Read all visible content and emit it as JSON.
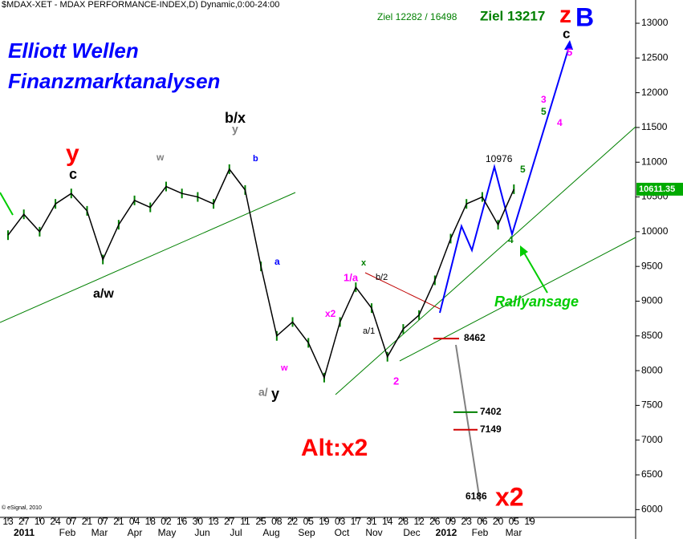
{
  "chart_data": {
    "type": "line",
    "title": "$MDAX-XET - MDAX PERFORMANCE-INDEX,D) Dynamic,0:00-24:00",
    "copyright": "© eSignal, 2010",
    "categories": [
      "13",
      "27",
      "10",
      "24",
      "07",
      "21",
      "07",
      "21",
      "04",
      "18",
      "02",
      "16",
      "30",
      "13",
      "27",
      "11",
      "25",
      "08",
      "22",
      "05",
      "19",
      "03",
      "17",
      "31",
      "14",
      "28",
      "12",
      "26",
      "09",
      "23",
      "06",
      "20",
      "05",
      "19"
    ],
    "months": [
      "2011",
      "Feb",
      "Mar",
      "Apr",
      "May",
      "Jun",
      "Jul",
      "Aug",
      "Sep",
      "Oct",
      "Nov",
      "Dec",
      "2012",
      "Feb",
      "Mar"
    ],
    "series": [
      {
        "name": "MDAX",
        "color": "#000000",
        "values": [
          9950,
          10250,
          10000,
          10400,
          10550,
          10300,
          9600,
          10100,
          10450,
          10350,
          10650,
          10550,
          10500,
          10400,
          10900,
          10600,
          9500,
          8500,
          8700,
          8400,
          7900,
          8700,
          9200,
          8900,
          8200,
          8600,
          8800,
          9300,
          9900,
          10400,
          10500,
          10100,
          10611,
          null
        ]
      }
    ],
    "last_price": 10611.35,
    "ylim": [
      5900,
      13300
    ],
    "yticks": [
      6000,
      6500,
      7000,
      7500,
      8000,
      8500,
      9000,
      9500,
      10000,
      10500,
      11000,
      11500,
      12000,
      12500,
      13000
    ],
    "levels": [
      {
        "value": 8462,
        "color": "#d00000"
      },
      {
        "value": 7402,
        "color": "#008000"
      },
      {
        "value": 7149,
        "color": "#d00000"
      },
      {
        "value": 6186,
        "color": "#808080"
      }
    ],
    "annotations": [
      {
        "text": "Elliott Wellen",
        "color": "#0000ff"
      },
      {
        "text": "Finanzmarktanalysen",
        "color": "#0000ff"
      },
      {
        "text": "Ziel 12282 / 16498",
        "color": "#008000"
      },
      {
        "text": "Ziel 13217",
        "color": "#008000"
      },
      {
        "text": "z",
        "color": "#ff0000"
      },
      {
        "text": "B",
        "color": "#0000ff"
      },
      {
        "text": "c",
        "color": "#000000"
      },
      {
        "text": "5",
        "color": "#ff00ff"
      },
      {
        "text": "y",
        "color": "#ff0000"
      },
      {
        "text": "c",
        "color": "#000000"
      },
      {
        "text": "b/x",
        "color": "#000000"
      },
      {
        "text": "y",
        "color": "#808080"
      },
      {
        "text": "a/w",
        "color": "#000000"
      },
      {
        "text": "a/",
        "color": "#808080"
      },
      {
        "text": "y",
        "color": "#000000"
      },
      {
        "text": "1/a",
        "color": "#ff00ff"
      },
      {
        "text": "x2",
        "color": "#ff00ff"
      },
      {
        "text": "10976",
        "color": "#000000"
      },
      {
        "text": "Rallyansage",
        "color": "#00cc00"
      },
      {
        "text": "Alt:x2",
        "color": "#ff0000"
      },
      {
        "text": "x2",
        "color": "#ff0000"
      },
      {
        "text": "3",
        "color": "#ff00ff"
      },
      {
        "text": "5",
        "color": "#008000"
      },
      {
        "text": "4",
        "color": "#ff00ff"
      },
      {
        "text": "5",
        "color": "#008000"
      },
      {
        "text": "4",
        "color": "#008000"
      },
      {
        "text": "2",
        "color": "#ff00ff"
      },
      {
        "text": "b/2",
        "color": "#000000"
      },
      {
        "text": "x",
        "color": "#008000"
      },
      {
        "text": "a/1",
        "color": "#000000"
      },
      {
        "text": "w",
        "color": "#ff00ff"
      },
      {
        "text": "b",
        "color": "#0000ff"
      },
      {
        "text": "a",
        "color": "#0000ff"
      },
      {
        "text": "w",
        "color": "#808080"
      }
    ]
  }
}
